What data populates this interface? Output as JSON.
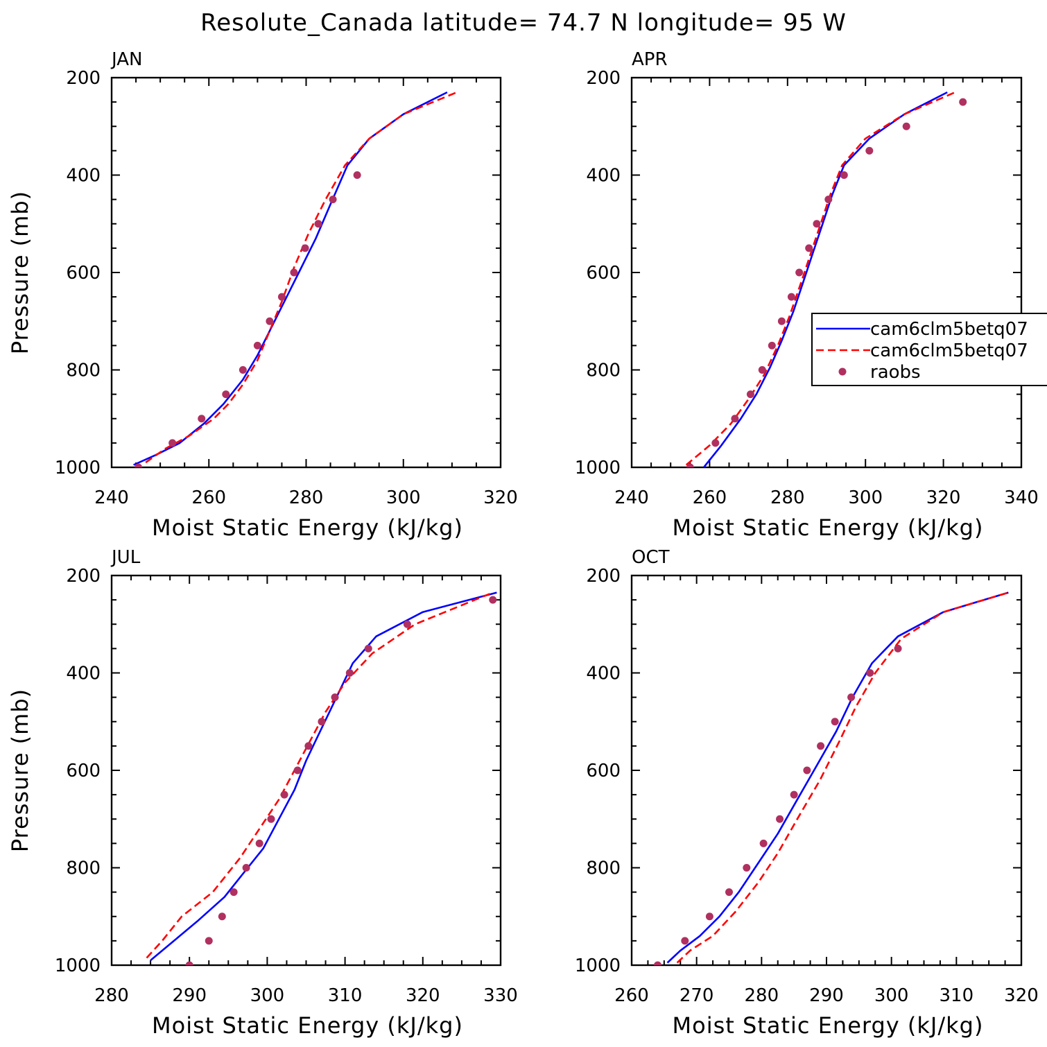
{
  "figure": {
    "title": "Resolute_Canada  latitude= 74.7 N longitude= 95 W"
  },
  "colors": {
    "model_solid": "#0000ff",
    "model_dashed": "#ff0000",
    "obs": "#b03060",
    "axes": "#000000"
  },
  "legend": {
    "panel": 1,
    "placement": "right, mid-height, clipped at figure edge",
    "entries": [
      {
        "label": "cam6clm5betq07",
        "style": "solid",
        "color": "#0000ff"
      },
      {
        "label": "cam6clm5betq07",
        "style": "dashed",
        "color": "#ff0000"
      },
      {
        "label": "raobs",
        "style": "marker",
        "color": "#b03060"
      }
    ]
  },
  "chart_data": [
    {
      "type": "line",
      "panel_label": "JAN",
      "xlabel": "Moist Static Energy (kJ/kg)",
      "ylabel": "Pressure (mb)",
      "xlim": [
        240,
        320
      ],
      "ylim": [
        1000,
        200
      ],
      "y_reversed": true,
      "xticks": [
        240,
        260,
        280,
        300,
        320
      ],
      "yticks": [
        200,
        400,
        600,
        800,
        1000
      ],
      "series": [
        {
          "style": "solid",
          "color": "#0000ff",
          "x": [
            244.5,
            249,
            254,
            259,
            263,
            267,
            270,
            273,
            276,
            279,
            282,
            285,
            288.5,
            293,
            300,
            309
          ],
          "y": [
            995,
            975,
            950,
            910,
            870,
            820,
            770,
            710,
            650,
            590,
            530,
            460,
            380,
            325,
            275,
            230
          ]
        },
        {
          "style": "dashed",
          "color": "#ff0000",
          "x": [
            247,
            251,
            256,
            261,
            264,
            267,
            270,
            272.5,
            275,
            277.5,
            280.5,
            284,
            288,
            293,
            300,
            311
          ],
          "y": [
            990,
            962,
            935,
            900,
            870,
            830,
            780,
            720,
            660,
            590,
            520,
            450,
            380,
            325,
            275,
            230
          ]
        },
        {
          "style": "marker",
          "color": "#b03060",
          "x": [
            245.5,
            252.5,
            258.5,
            263.5,
            267,
            270,
            272.5,
            275,
            277.5,
            279.8,
            282.5,
            285.5,
            290.5
          ],
          "y": [
            1000,
            950,
            900,
            850,
            800,
            750,
            700,
            650,
            600,
            550,
            500,
            450,
            400
          ]
        }
      ]
    },
    {
      "type": "line",
      "panel_label": "APR",
      "xlabel": "Moist Static Energy (kJ/kg)",
      "ylabel": "",
      "xlim": [
        240,
        340
      ],
      "ylim": [
        1000,
        200
      ],
      "y_reversed": true,
      "xticks": [
        240,
        260,
        280,
        300,
        320,
        340
      ],
      "yticks": [
        200,
        400,
        600,
        800,
        1000
      ],
      "series": [
        {
          "style": "solid",
          "color": "#0000ff",
          "x": [
            258.5,
            263,
            268,
            272,
            275.5,
            278.5,
            281.5,
            284,
            286.5,
            289,
            291.5,
            294.5,
            301,
            310,
            321
          ],
          "y": [
            1000,
            955,
            900,
            850,
            795,
            740,
            680,
            620,
            560,
            500,
            440,
            380,
            325,
            275,
            230
          ]
        },
        {
          "style": "dashed",
          "color": "#ff0000",
          "x": [
            254,
            260,
            265.5,
            270,
            274,
            277.5,
            280.5,
            283.5,
            286,
            288.5,
            291,
            294,
            300,
            310,
            323
          ],
          "y": [
            995,
            955,
            910,
            860,
            810,
            750,
            690,
            620,
            560,
            500,
            440,
            380,
            325,
            275,
            230
          ]
        },
        {
          "style": "marker",
          "color": "#b03060",
          "x": [
            255,
            261.5,
            266.5,
            270.5,
            273.5,
            276,
            278.5,
            281,
            283,
            285.5,
            287.5,
            290.5,
            294.5,
            301,
            310.5,
            325
          ],
          "y": [
            1000,
            950,
            900,
            850,
            800,
            750,
            700,
            650,
            600,
            550,
            500,
            450,
            400,
            350,
            300,
            250
          ]
        }
      ]
    },
    {
      "type": "line",
      "panel_label": "JUL",
      "xlabel": "Moist Static Energy (kJ/kg)",
      "ylabel": "Pressure (mb)",
      "xlim": [
        280,
        330
      ],
      "ylim": [
        1000,
        200
      ],
      "y_reversed": true,
      "xticks": [
        280,
        290,
        300,
        310,
        320,
        330
      ],
      "yticks": [
        200,
        400,
        600,
        800,
        1000
      ],
      "series": [
        {
          "style": "solid",
          "color": "#0000ff",
          "x": [
            285,
            288,
            291,
            294.5,
            297,
            299.5,
            301.5,
            303.5,
            305,
            306.5,
            308,
            309.5,
            311,
            314,
            320,
            329.5
          ],
          "y": [
            990,
            950,
            910,
            860,
            810,
            760,
            700,
            640,
            580,
            530,
            480,
            430,
            380,
            325,
            275,
            235
          ]
        },
        {
          "style": "dashed",
          "color": "#ff0000",
          "x": [
            284.5,
            286.5,
            289,
            293,
            296.5,
            299,
            301.5,
            303.5,
            305.5,
            307.5,
            310,
            313.5,
            319,
            329
          ],
          "y": [
            985,
            950,
            900,
            850,
            780,
            720,
            660,
            600,
            540,
            480,
            420,
            360,
            300,
            235
          ]
        },
        {
          "style": "marker",
          "color": "#b03060",
          "x": [
            290,
            292.5,
            294.2,
            295.7,
            297.3,
            299,
            300.5,
            302.2,
            303.9,
            305.3,
            307,
            308.7,
            310.6,
            313,
            318,
            329
          ],
          "y": [
            1000,
            950,
            900,
            850,
            800,
            750,
            700,
            650,
            600,
            550,
            500,
            450,
            400,
            350,
            300,
            250
          ]
        }
      ]
    },
    {
      "type": "line",
      "panel_label": "OCT",
      "xlabel": "Moist Static Energy (kJ/kg)",
      "ylabel": "",
      "xlim": [
        260,
        320
      ],
      "ylim": [
        1000,
        200
      ],
      "y_reversed": true,
      "xticks": [
        260,
        270,
        280,
        290,
        300,
        310,
        320
      ],
      "yticks": [
        200,
        400,
        600,
        800,
        1000
      ],
      "series": [
        {
          "style": "solid",
          "color": "#0000ff",
          "x": [
            265.5,
            267.5,
            270.5,
            273.5,
            276.5,
            279.5,
            282.5,
            285.5,
            288.5,
            291.5,
            294,
            297,
            301,
            308,
            318
          ],
          "y": [
            995,
            970,
            940,
            900,
            850,
            790,
            730,
            660,
            590,
            520,
            450,
            380,
            325,
            275,
            235
          ]
        },
        {
          "style": "dashed",
          "color": "#ff0000",
          "x": [
            267,
            269,
            272.5,
            276,
            279.5,
            282.5,
            285.5,
            289,
            292,
            294.5,
            297.5,
            301.5,
            308,
            318
          ],
          "y": [
            995,
            970,
            940,
            890,
            830,
            770,
            700,
            620,
            540,
            470,
            400,
            330,
            275,
            235
          ]
        },
        {
          "style": "marker",
          "color": "#b03060",
          "x": [
            264,
            268.2,
            272,
            275,
            277.7,
            280.3,
            282.8,
            285,
            287,
            289.1,
            291.3,
            293.8,
            296.7,
            301
          ],
          "y": [
            1000,
            950,
            900,
            850,
            800,
            750,
            700,
            650,
            600,
            550,
            500,
            450,
            400,
            350
          ]
        }
      ]
    }
  ]
}
